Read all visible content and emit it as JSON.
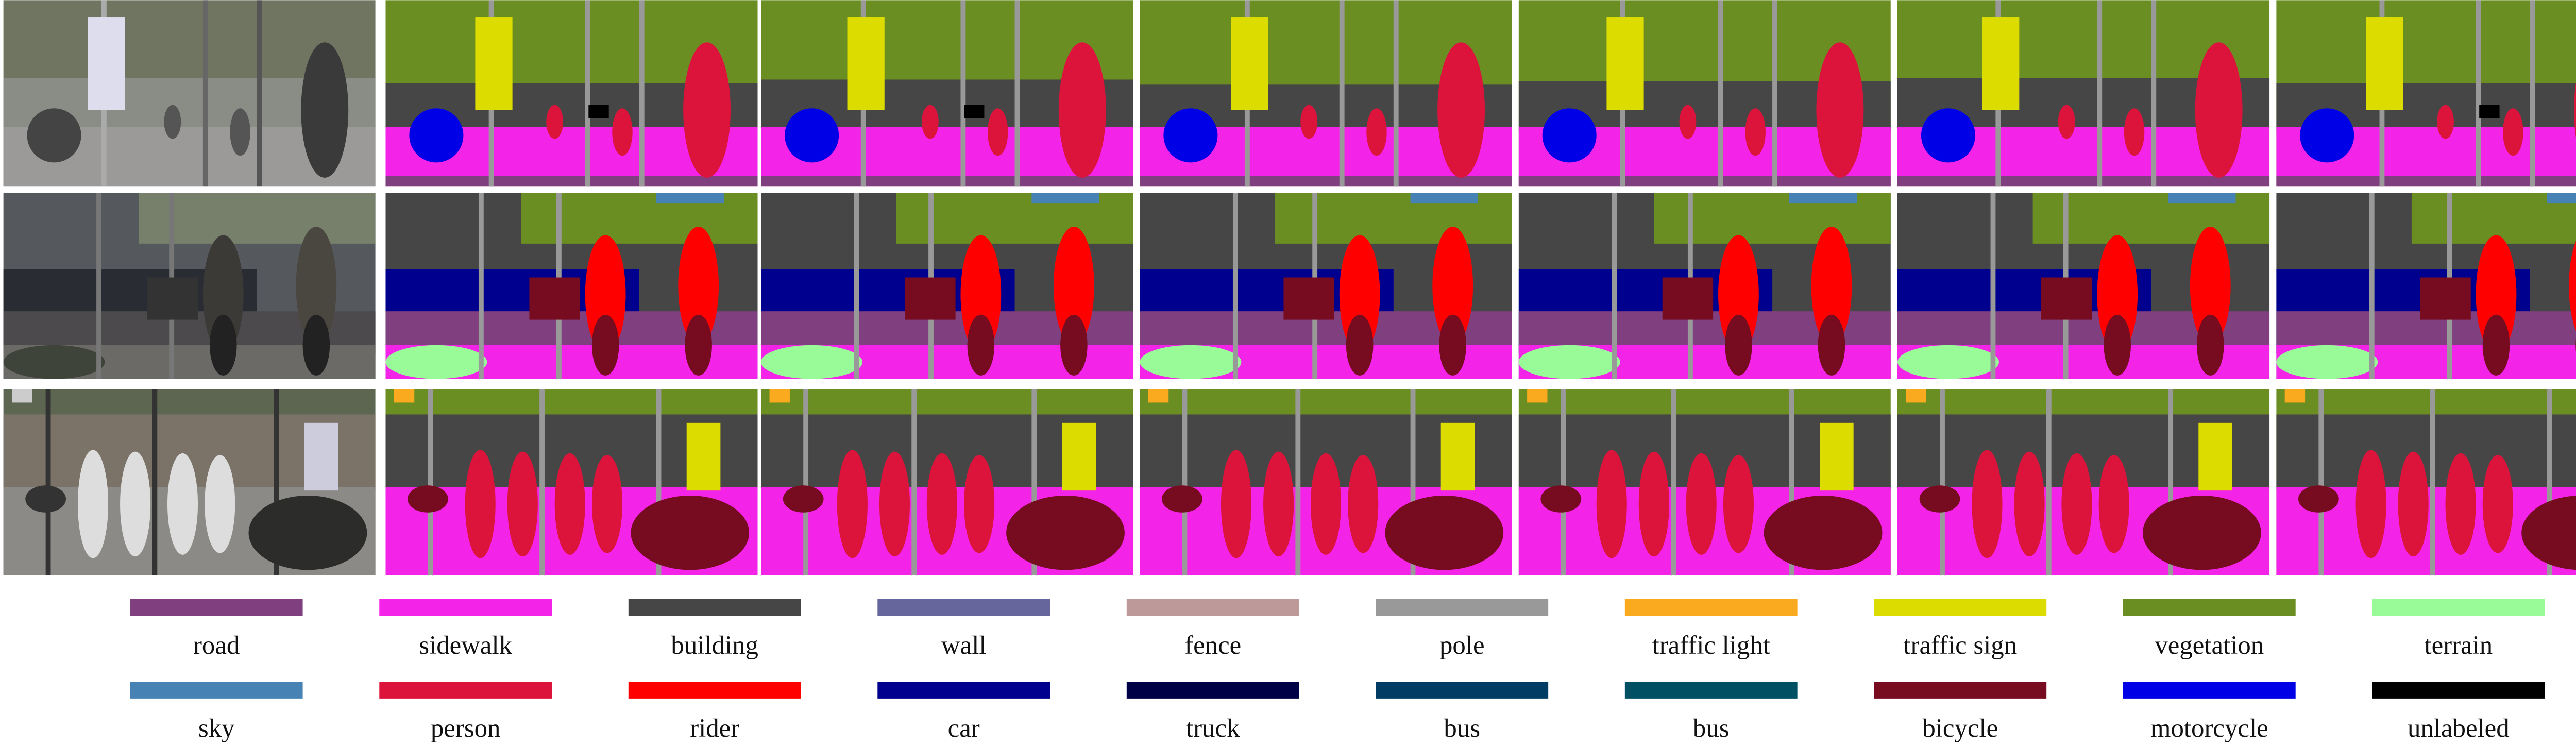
{
  "legend": {
    "items": [
      {
        "label": "road",
        "color": "#804080"
      },
      {
        "label": "sidewalk",
        "color": "#f423e8"
      },
      {
        "label": "building",
        "color": "#464646"
      },
      {
        "label": "wall",
        "color": "#66669c"
      },
      {
        "label": "fence",
        "color": "#be9999"
      },
      {
        "label": "pole",
        "color": "#999999"
      },
      {
        "label": "traffic light",
        "color": "#faaa1e"
      },
      {
        "label": "traffic sign",
        "color": "#dcdc00"
      },
      {
        "label": "vegetation",
        "color": "#6b8e23"
      },
      {
        "label": "terrain",
        "color": "#98fb98"
      },
      {
        "label": "sky",
        "color": "#4682b4"
      },
      {
        "label": "person",
        "color": "#dc143c"
      },
      {
        "label": "rider",
        "color": "#ff0000"
      },
      {
        "label": "car",
        "color": "#00008e"
      },
      {
        "label": "truck",
        "color": "#000046"
      },
      {
        "label": "bus",
        "color": "#003c64"
      },
      {
        "label": "bus",
        "color": "#005064"
      },
      {
        "label": "bicycle",
        "color": "#770b20"
      },
      {
        "label": "motorcycle",
        "color": "#0000e6"
      },
      {
        "label": "unlabeled",
        "color": "#000000"
      }
    ]
  }
}
